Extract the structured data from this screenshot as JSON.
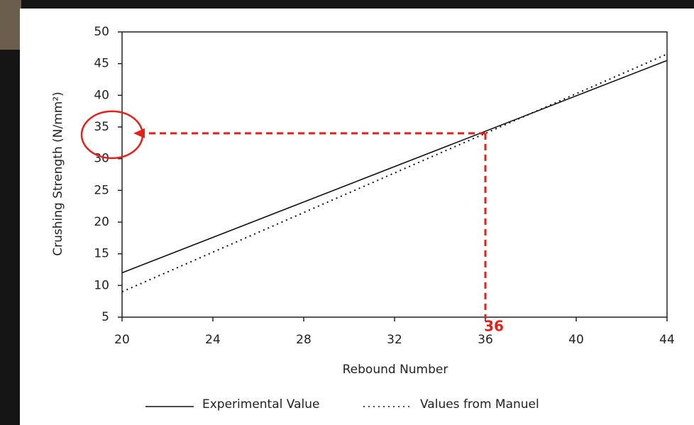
{
  "chart_data": {
    "type": "line",
    "x_label": "Rebound Number",
    "y_label": "Crushing Strength (N/mm²)",
    "x": [
      20,
      44
    ],
    "series": [
      {
        "name": "Experimental Value",
        "color": "#111111",
        "style": "solid",
        "values": [
          12,
          45.5
        ]
      },
      {
        "name": "Values from Manuel",
        "color": "#111111",
        "style": "dotted",
        "values": [
          9,
          46.5
        ]
      }
    ],
    "xlim": [
      20,
      44
    ],
    "xticks": [
      20,
      24,
      28,
      32,
      36,
      40,
      44
    ],
    "ylim": [
      5,
      50
    ],
    "yticks": [
      5,
      10,
      15,
      20,
      25,
      30,
      35,
      40,
      45,
      50
    ],
    "grid": false,
    "annotation": {
      "x": 36,
      "y": 34,
      "color": "#e3211c"
    }
  }
}
